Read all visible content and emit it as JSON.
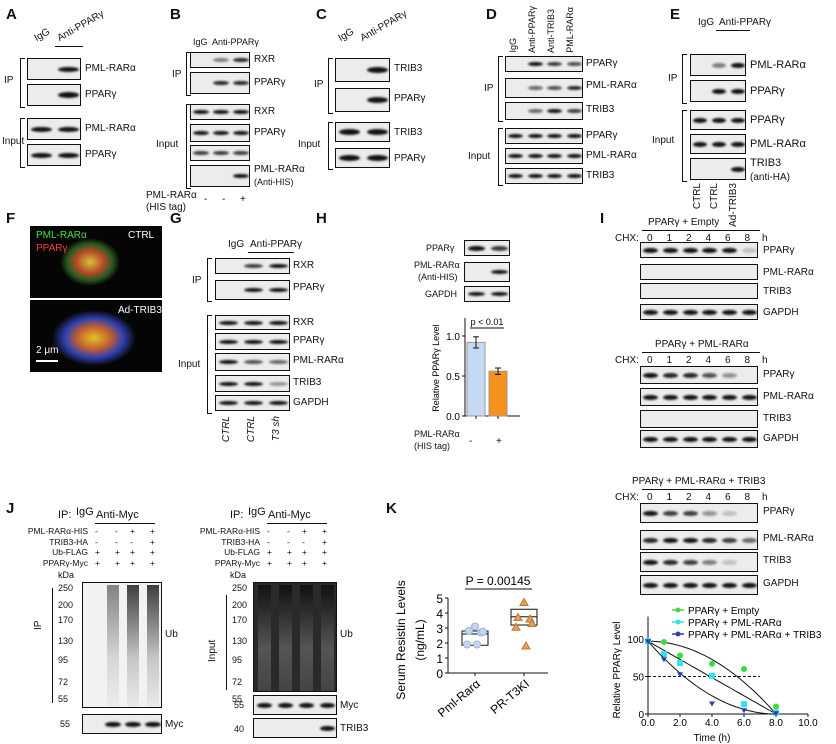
{
  "A": {
    "letter": "A",
    "lanes": [
      "IgG",
      "Anti-PPARγ"
    ],
    "ip": "IP",
    "input": "Input",
    "rows": [
      "PML-RARα",
      "PPARγ",
      "PML-RARα",
      "PPARγ"
    ]
  },
  "B": {
    "letter": "B",
    "lanes": [
      "IgG",
      "Anti-PPARγ"
    ],
    "ip": "IP",
    "input": "Input",
    "rows": [
      "RXR",
      "PPARγ",
      "RXR",
      "PPARγ",
      "PML-RARα",
      "(Anti-HIS)"
    ],
    "treatment_label": [
      "PML-RARα",
      "(HIS tag)"
    ],
    "treatment": [
      "-",
      "-",
      "+"
    ]
  },
  "C": {
    "letter": "C",
    "lanes": [
      "IgG",
      "Anti-PPARγ"
    ],
    "ip": "IP",
    "input": "Input",
    "rows": [
      "TRIB3",
      "PPARγ",
      "TRIB3",
      "PPARγ"
    ]
  },
  "D": {
    "letter": "D",
    "lanes": [
      "IgG",
      "Anti-PPARγ",
      "Anti-TRIB3",
      "PML-RARα"
    ],
    "ip": "IP",
    "input": "Input",
    "rows": [
      "PPARγ",
      "PML-RARα",
      "TRIB3",
      "PPARγ",
      "PML-RARα",
      "TRIB3"
    ]
  },
  "E": {
    "letter": "E",
    "lanes": [
      "IgG",
      "Anti-PPARγ"
    ],
    "ip": "IP",
    "input": "Input",
    "rows": [
      "PML-RARα",
      "PPARγ",
      "PPARγ",
      "PML-RARα",
      "TRIB3",
      "(anti-HA)"
    ],
    "bottom": [
      "CTRL",
      "CTRL",
      "Ad-TRIB3"
    ]
  },
  "F": {
    "letter": "F",
    "stain1": "PML-RARα",
    "stain2": "PPARγ",
    "cond1": "CTRL",
    "cond2": "Ad-TRIB3",
    "scale": "2 μm"
  },
  "G": {
    "letter": "G",
    "lanes": [
      "IgG",
      "Anti-PPARγ"
    ],
    "ip": "IP",
    "input": "Input",
    "rows": [
      "RXR",
      "PPARγ",
      "RXR",
      "PPARγ",
      "PML-RARα",
      "TRIB3",
      "GAPDH"
    ],
    "bottom": [
      "CTRL",
      "CTRL",
      "T3 sh"
    ]
  },
  "H": {
    "letter": "H",
    "rows": [
      "PPARγ",
      "PML-RARα",
      "(Anti-HIS)",
      "GAPDH"
    ],
    "xlabel": [
      "PML-RARα",
      "(HIS tag)"
    ],
    "treatment": [
      "-",
      "+"
    ]
  },
  "I": {
    "letter": "I",
    "chx": "CHX:",
    "times": [
      "0",
      "1",
      "2",
      "4",
      "6",
      "8"
    ],
    "unit": "h",
    "blocks": [
      {
        "title": "PPARγ + Empty",
        "rows": [
          "PPARγ",
          "PML-RARα",
          "TRIB3",
          "GAPDH"
        ]
      },
      {
        "title": "PPARγ + PML-RARα",
        "rows": [
          "PPARγ",
          "PML-RARα",
          "TRIB3",
          "GAPDH"
        ]
      },
      {
        "title": "PPARγ + PML-RARα + TRIB3",
        "rows": [
          "PPARγ",
          "PML-RARα",
          "TRIB3",
          "GAPDH"
        ]
      }
    ]
  },
  "J": {
    "letter": "J",
    "ip_label": "IP:",
    "igg": "IgG",
    "anti": "Anti-Myc",
    "conds": [
      {
        "label": "PML-RARα-HIS",
        "v": [
          "-",
          "-",
          "+",
          "+"
        ]
      },
      {
        "label": "TRIB3-HA",
        "v": [
          "-",
          "-",
          "-",
          "+"
        ]
      },
      {
        "label": "Ub-FLAG",
        "v": [
          "+",
          "+",
          "+",
          "+"
        ]
      },
      {
        "label": "PPARγ-Myc",
        "v": [
          "+",
          "+",
          "+",
          "+"
        ]
      }
    ],
    "kda": "kDa",
    "left_markers": [
      "250",
      "200",
      "170",
      "130",
      "95",
      "72",
      "55"
    ],
    "left_bottom_marker": "55",
    "right_markers": [
      "250",
      "200",
      "170",
      "130",
      "95",
      "72",
      "55"
    ],
    "right_myc_marker": "55",
    "right_trib3_marker": "40",
    "ub": "Ub",
    "myc": "Myc",
    "trib3": "TRIB3",
    "ip": "IP",
    "input": "Input"
  },
  "K": {
    "letter": "K"
  },
  "chart_data": [
    {
      "panel": "H",
      "type": "bar",
      "categories": [
        "-",
        "+"
      ],
      "values": [
        0.92,
        0.56
      ],
      "errors": [
        0.07,
        0.04
      ],
      "colors": [
        "#c5d9f5",
        "#f5921e"
      ],
      "ylabel": "Relative PPARγ Level",
      "yticks": [
        "0.0",
        "0.5",
        "1.0"
      ],
      "ylim": [
        0,
        1.2
      ],
      "annotation": "p < 0.01"
    },
    {
      "panel": "I",
      "type": "line",
      "xlabel": "Time (h)",
      "ylabel": "Relative PPARγ Level",
      "xlim": [
        0,
        10
      ],
      "ylim": [
        0,
        130
      ],
      "xticks": [
        "0.0",
        "2.0",
        "4.0",
        "6.0",
        "8.0",
        "10.0"
      ],
      "yticks": [
        "0",
        "50",
        "100"
      ],
      "reference_line": 50,
      "legend": "top-right",
      "x": [
        0,
        1,
        2,
        4,
        6,
        8
      ],
      "series": [
        {
          "name": "PPARγ + Empty",
          "color": "#3ddc3d",
          "values": [
            97,
            96,
            78,
            67,
            60,
            10
          ]
        },
        {
          "name": "PPARγ + PML-RARα",
          "color": "#33e0f0",
          "values": [
            97,
            80,
            68,
            51,
            13,
            2
          ]
        },
        {
          "name": "PPARγ + PML-RARα + TRIB3",
          "color": "#2a3fb5",
          "values": [
            97,
            73,
            53,
            14,
            5,
            1
          ]
        }
      ]
    },
    {
      "panel": "K",
      "type": "scatter",
      "title": "P = 0.00145",
      "ylabel": [
        "Serum Resistin Levels",
        "(ng/mL)"
      ],
      "ylim": [
        0,
        5
      ],
      "yticks": [
        "0",
        "1",
        "2",
        "3",
        "4",
        "5"
      ],
      "categories": [
        "Pml-Rarα",
        "PR-T3KI"
      ],
      "series": [
        {
          "name": "Pml-Rarα",
          "color": "#c5d6ef",
          "points": [
            3.1,
            2.8,
            2.7,
            2.75,
            1.9,
            1.9
          ],
          "box": [
            1.85,
            2.6,
            2.8
          ]
        },
        {
          "name": "PR-T3KI",
          "color": "#e8a052",
          "points": [
            4.7,
            3.7,
            3.6,
            3.3,
            3.05,
            1.8
          ],
          "box": [
            3.2,
            3.75,
            4.25
          ]
        }
      ]
    }
  ]
}
